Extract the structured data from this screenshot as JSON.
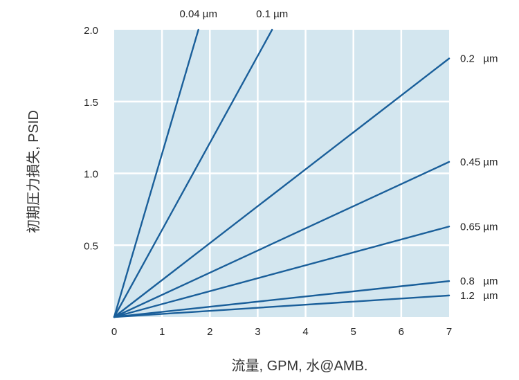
{
  "chart_data": {
    "type": "line",
    "xlabel": "流量, GPM, 水@AMB.",
    "ylabel": "初期圧力損失, PSID",
    "xlim": [
      0,
      7
    ],
    "ylim": [
      0,
      2.0
    ],
    "x_ticks": [
      "0",
      "1",
      "2",
      "3",
      "4",
      "5",
      "6",
      "7"
    ],
    "y_ticks": [
      "0.5",
      "1.0",
      "1.5",
      "2.0"
    ],
    "grid": true,
    "background_color": "#d3e6ef",
    "grid_color": "#ffffff",
    "line_color": "#1a5f9a",
    "series": [
      {
        "name": "0.04 µm",
        "label_position": "top",
        "x": [
          0,
          1.76
        ],
        "y": [
          0,
          2.0
        ]
      },
      {
        "name": "0.1 µm",
        "label_position": "top",
        "x": [
          0,
          3.3
        ],
        "y": [
          0,
          2.0
        ]
      },
      {
        "name": "0.2   µm",
        "label_position": "right",
        "x": [
          0,
          7
        ],
        "y": [
          0,
          1.8
        ]
      },
      {
        "name": "0.45 µm",
        "label_position": "right",
        "x": [
          0,
          7
        ],
        "y": [
          0,
          1.08
        ]
      },
      {
        "name": "0.65 µm",
        "label_position": "right",
        "x": [
          0,
          7
        ],
        "y": [
          0,
          0.63
        ]
      },
      {
        "name": "0.8   µm",
        "label_position": "right",
        "x": [
          0,
          7
        ],
        "y": [
          0,
          0.25
        ]
      },
      {
        "name": "1.2   µm",
        "label_position": "right",
        "x": [
          0,
          7
        ],
        "y": [
          0,
          0.15
        ]
      }
    ]
  }
}
